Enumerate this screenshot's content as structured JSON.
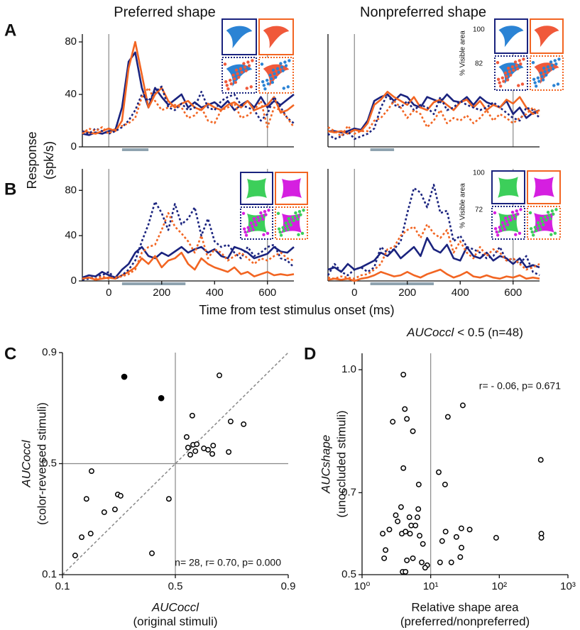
{
  "figure": {
    "panel_labels": [
      "A",
      "B",
      "C",
      "D"
    ],
    "ylabel": [
      "Response",
      "(spk/s)"
    ],
    "xlabel": "Time from test stimulus onset (ms)"
  },
  "chart_data": [
    {
      "type": "line",
      "title": "Preferred shape",
      "xlim": [
        -100,
        700
      ],
      "ylim": [
        0,
        86
      ],
      "yticks": [
        0,
        40,
        80
      ],
      "vlines": [
        0,
        600
      ],
      "window": [
        50,
        150
      ],
      "x": [
        -100,
        -75,
        -50,
        -25,
        0,
        25,
        50,
        75,
        100,
        125,
        150,
        175,
        200,
        225,
        250,
        275,
        300,
        325,
        350,
        375,
        400,
        425,
        450,
        475,
        500,
        525,
        550,
        575,
        600,
        625,
        650,
        675,
        700
      ],
      "series": [
        {
          "color": "#1a237e",
          "dash": false,
          "values": [
            10,
            9,
            11,
            10,
            12,
            13,
            30,
            65,
            72,
            45,
            30,
            45,
            38,
            32,
            36,
            40,
            30,
            34,
            30,
            32,
            34,
            30,
            35,
            28,
            32,
            35,
            30,
            38,
            30,
            35,
            32,
            36,
            40
          ]
        },
        {
          "color": "#f26522",
          "dash": false,
          "values": [
            12,
            11,
            10,
            12,
            14,
            12,
            20,
            60,
            80,
            55,
            30,
            40,
            45,
            35,
            30,
            33,
            35,
            30,
            28,
            33,
            30,
            28,
            32,
            34,
            30,
            35,
            28,
            30,
            32,
            38,
            26,
            28,
            32
          ]
        },
        {
          "color": "#1a237e",
          "dash": true,
          "values": [
            12,
            10,
            14,
            12,
            10,
            12,
            15,
            20,
            28,
            40,
            35,
            42,
            46,
            30,
            28,
            33,
            28,
            30,
            42,
            30,
            28,
            35,
            38,
            40,
            32,
            30,
            28,
            20,
            25,
            38,
            30,
            22,
            18
          ]
        },
        {
          "color": "#f26522",
          "dash": true,
          "values": [
            10,
            14,
            12,
            15,
            10,
            14,
            16,
            18,
            22,
            38,
            45,
            35,
            28,
            30,
            32,
            30,
            22,
            24,
            30,
            20,
            18,
            28,
            30,
            33,
            22,
            24,
            28,
            35,
            15,
            30,
            28,
            22,
            15
          ]
        }
      ]
    },
    {
      "type": "line",
      "title": "Nonpreferred shape",
      "xlim": [
        -100,
        700
      ],
      "ylim": [
        0,
        86
      ],
      "vlines": [
        0,
        600
      ],
      "window": [
        60,
        150
      ],
      "inset_label": "% Visible area",
      "inset_ticks": [
        100,
        82
      ],
      "x": [
        -100,
        -75,
        -50,
        -25,
        0,
        25,
        50,
        75,
        100,
        125,
        150,
        175,
        200,
        225,
        250,
        275,
        300,
        325,
        350,
        375,
        400,
        425,
        450,
        475,
        500,
        525,
        550,
        575,
        600,
        625,
        650,
        675,
        700
      ],
      "series": [
        {
          "color": "#1a237e",
          "dash": false,
          "values": [
            12,
            12,
            11,
            12,
            14,
            13,
            20,
            35,
            38,
            40,
            35,
            40,
            38,
            32,
            30,
            38,
            36,
            34,
            40,
            35,
            34,
            38,
            32,
            38,
            34,
            32,
            30,
            35,
            25,
            30,
            22,
            26,
            28
          ]
        },
        {
          "color": "#f26522",
          "dash": false,
          "values": [
            12,
            11,
            12,
            10,
            13,
            12,
            18,
            32,
            36,
            42,
            38,
            35,
            32,
            38,
            30,
            28,
            34,
            36,
            32,
            28,
            34,
            36,
            30,
            35,
            28,
            32,
            30,
            36,
            33,
            38,
            30,
            25,
            28
          ]
        },
        {
          "color": "#1a237e",
          "dash": true,
          "values": [
            10,
            6,
            8,
            12,
            6,
            8,
            10,
            14,
            30,
            40,
            32,
            30,
            35,
            28,
            32,
            30,
            25,
            38,
            28,
            30,
            35,
            32,
            30,
            28,
            30,
            34,
            30,
            26,
            22,
            20,
            30,
            28,
            22
          ]
        },
        {
          "color": "#f26522",
          "dash": true,
          "values": [
            15,
            12,
            8,
            16,
            10,
            12,
            12,
            20,
            22,
            28,
            35,
            30,
            22,
            28,
            25,
            15,
            20,
            28,
            18,
            22,
            20,
            24,
            18,
            22,
            28,
            20,
            25,
            22,
            18,
            22,
            25,
            30,
            24
          ]
        }
      ]
    },
    {
      "type": "line",
      "xlim": [
        -100,
        700
      ],
      "ylim": [
        0,
        99
      ],
      "yticks": [
        0,
        40,
        80
      ],
      "xticks": [
        0,
        200,
        400,
        600
      ],
      "vlines": [
        0,
        600
      ],
      "window": [
        50,
        290
      ],
      "x": [
        -100,
        -75,
        -50,
        -25,
        0,
        25,
        50,
        75,
        100,
        125,
        150,
        175,
        200,
        225,
        250,
        275,
        300,
        325,
        350,
        375,
        400,
        425,
        450,
        475,
        500,
        525,
        550,
        575,
        600,
        625,
        650,
        675,
        700
      ],
      "series": [
        {
          "color": "#1a237e",
          "dash": false,
          "values": [
            3,
            5,
            4,
            8,
            5,
            3,
            10,
            15,
            25,
            30,
            22,
            20,
            25,
            22,
            26,
            30,
            25,
            28,
            30,
            25,
            28,
            22,
            20,
            30,
            28,
            25,
            20,
            22,
            24,
            30,
            26,
            25,
            30
          ]
        },
        {
          "color": "#f26522",
          "dash": false,
          "values": [
            2,
            3,
            1,
            2,
            3,
            2,
            5,
            8,
            12,
            20,
            15,
            22,
            12,
            18,
            20,
            25,
            15,
            10,
            20,
            15,
            12,
            10,
            8,
            12,
            6,
            8,
            4,
            6,
            8,
            5,
            6,
            5,
            6
          ]
        },
        {
          "color": "#1a237e",
          "dash": true,
          "values": [
            1,
            2,
            4,
            5,
            8,
            2,
            5,
            10,
            18,
            35,
            50,
            70,
            60,
            45,
            68,
            50,
            55,
            65,
            40,
            55,
            35,
            30,
            32,
            25,
            20,
            30,
            22,
            25,
            30,
            32,
            20,
            18,
            12
          ]
        },
        {
          "color": "#f26522",
          "dash": true,
          "values": [
            2,
            3,
            2,
            4,
            2,
            3,
            4,
            6,
            10,
            25,
            30,
            32,
            45,
            60,
            48,
            42,
            35,
            25,
            40,
            20,
            28,
            25,
            18,
            22,
            25,
            20,
            15,
            20,
            18,
            22,
            25,
            20,
            18
          ]
        }
      ]
    },
    {
      "type": "line",
      "xlim": [
        -100,
        700
      ],
      "ylim": [
        0,
        99
      ],
      "xticks": [
        0,
        200,
        400,
        600
      ],
      "vlines": [
        0,
        600
      ],
      "window": [
        60,
        300
      ],
      "inset_label": "% Visible area",
      "inset_ticks": [
        100,
        72
      ],
      "x": [
        -100,
        -75,
        -50,
        -25,
        0,
        25,
        50,
        75,
        100,
        125,
        150,
        175,
        200,
        225,
        250,
        275,
        300,
        325,
        350,
        375,
        400,
        425,
        450,
        475,
        500,
        525,
        550,
        575,
        600,
        625,
        650,
        675,
        700
      ],
      "series": [
        {
          "color": "#1a237e",
          "dash": false,
          "values": [
            10,
            12,
            8,
            15,
            10,
            12,
            15,
            18,
            25,
            22,
            28,
            20,
            25,
            30,
            22,
            38,
            28,
            25,
            32,
            20,
            18,
            30,
            22,
            20,
            25,
            18,
            22,
            20,
            15,
            20,
            12,
            14,
            12
          ]
        },
        {
          "color": "#f26522",
          "dash": false,
          "values": [
            1,
            2,
            1,
            2,
            0,
            2,
            3,
            5,
            8,
            6,
            4,
            5,
            8,
            5,
            3,
            6,
            8,
            10,
            6,
            3,
            5,
            8,
            4,
            3,
            5,
            3,
            2,
            4,
            3,
            5,
            2,
            3,
            2
          ]
        },
        {
          "color": "#1a237e",
          "dash": true,
          "values": [
            5,
            15,
            8,
            5,
            10,
            12,
            8,
            12,
            30,
            25,
            28,
            35,
            60,
            82,
            78,
            65,
            85,
            60,
            62,
            35,
            40,
            30,
            28,
            25,
            20,
            22,
            30,
            18,
            20,
            15,
            22,
            8,
            5
          ]
        },
        {
          "color": "#f26522",
          "dash": true,
          "values": [
            3,
            2,
            4,
            3,
            2,
            5,
            6,
            10,
            15,
            28,
            30,
            40,
            45,
            48,
            38,
            50,
            42,
            38,
            45,
            25,
            35,
            25,
            20,
            30,
            22,
            28,
            25,
            18,
            20,
            15,
            10,
            12,
            15
          ]
        }
      ]
    },
    {
      "type": "scatter",
      "xlim": [
        0.1,
        0.9
      ],
      "ylim": [
        0.1,
        0.9
      ],
      "xticks": [
        0.1,
        0.5,
        0.9
      ],
      "yticks": [
        0.1,
        0.5,
        0.9
      ],
      "vlines": [
        0.5
      ],
      "hlines": [
        0.5
      ],
      "diagonal": true,
      "xlabel": [
        "AUCoccl",
        "(original stimuli)"
      ],
      "ylabel": [
        "AUCoccl",
        "(color-reversed stimuli)"
      ],
      "xlabel_italic_first": true,
      "annotation": "n= 28, r= 0.70, p= 0.000",
      "series": [
        {
          "color": "#000000",
          "filled": true,
          "x": [
            0.319,
            0.45
          ],
          "values": [
            0.813,
            0.736
          ]
        },
        {
          "color": "#000000",
          "filled": false,
          "x": [
            0.145,
            0.168,
            0.2,
            0.203,
            0.185,
            0.248,
            0.286,
            0.296,
            0.306,
            0.417,
            0.477,
            0.656,
            0.56,
            0.696,
            0.742,
            0.54,
            0.545,
            0.553,
            0.563,
            0.576,
            0.571,
            0.601,
            0.616,
            0.631,
            0.634,
            0.689
          ],
          "values": [
            0.169,
            0.235,
            0.248,
            0.473,
            0.373,
            0.325,
            0.335,
            0.389,
            0.384,
            0.177,
            0.373,
            0.818,
            0.673,
            0.652,
            0.642,
            0.596,
            0.558,
            0.532,
            0.568,
            0.57,
            0.545,
            0.555,
            0.55,
            0.535,
            0.565,
            0.542
          ]
        }
      ]
    },
    {
      "type": "scatter",
      "title": [
        "AUCoccl",
        "< 0.5 (n=48)"
      ],
      "xscale": "log",
      "xlim": [
        1,
        1000
      ],
      "ylim": [
        0.5,
        1.04
      ],
      "xticks": [
        {
          "value": 1,
          "label": "10⁰"
        },
        {
          "value": 10,
          "label": "10¹"
        },
        {
          "value": 100,
          "label": "10²"
        },
        {
          "value": 1000,
          "label": "10³"
        }
      ],
      "yticks": [
        0.5,
        0.7,
        {
          "value": 1,
          "label": "1.0"
        }
      ],
      "vlines": [
        10
      ],
      "xlabel": [
        "Relative shape area",
        "(preferred/nonpreferred)"
      ],
      "ylabel": [
        "AUCshape",
        "(unoccluded stimuli)"
      ],
      "xlabel_italic_first": false,
      "annotation": "r= - 0.06, p= 0.671",
      "series": [
        {
          "color": "#000000",
          "filled": false,
          "x": [
            4.0,
            2.8,
            4.2,
            4.5,
            5.5,
            4.0,
            6.7,
            17.8,
            29.4,
            13.1,
            16.2,
            402,
            410,
            410,
            2.1,
            2.2,
            2.0,
            2.5,
            3.1,
            3.7,
            3.3,
            3.8,
            4.3,
            5.0,
            5.2,
            4.9,
            6.4,
            6.6,
            6.0,
            6.9,
            7.7,
            5.5,
            4.5,
            3.9,
            4.3,
            7.4,
            8.9,
            8.3,
            14.7,
            16.5,
            23.7,
            28,
            28.1,
            37,
            13.7,
            20,
            90,
            27
          ],
          "values": [
            0.988,
            0.873,
            0.904,
            0.88,
            0.85,
            0.76,
            0.72,
            0.885,
            0.913,
            0.75,
            0.72,
            0.78,
            0.6,
            0.59,
            0.54,
            0.56,
            0.6,
            0.61,
            0.645,
            0.665,
            0.63,
            0.6,
            0.605,
            0.6,
            0.62,
            0.64,
            0.64,
            0.66,
            0.62,
            0.595,
            0.575,
            0.54,
            0.535,
            0.507,
            0.507,
            0.53,
            0.523,
            0.517,
            0.582,
            0.605,
            0.592,
            0.613,
            0.566,
            0.61,
            0.53,
            0.53,
            0.59,
            0.543
          ]
        }
      ]
    }
  ]
}
